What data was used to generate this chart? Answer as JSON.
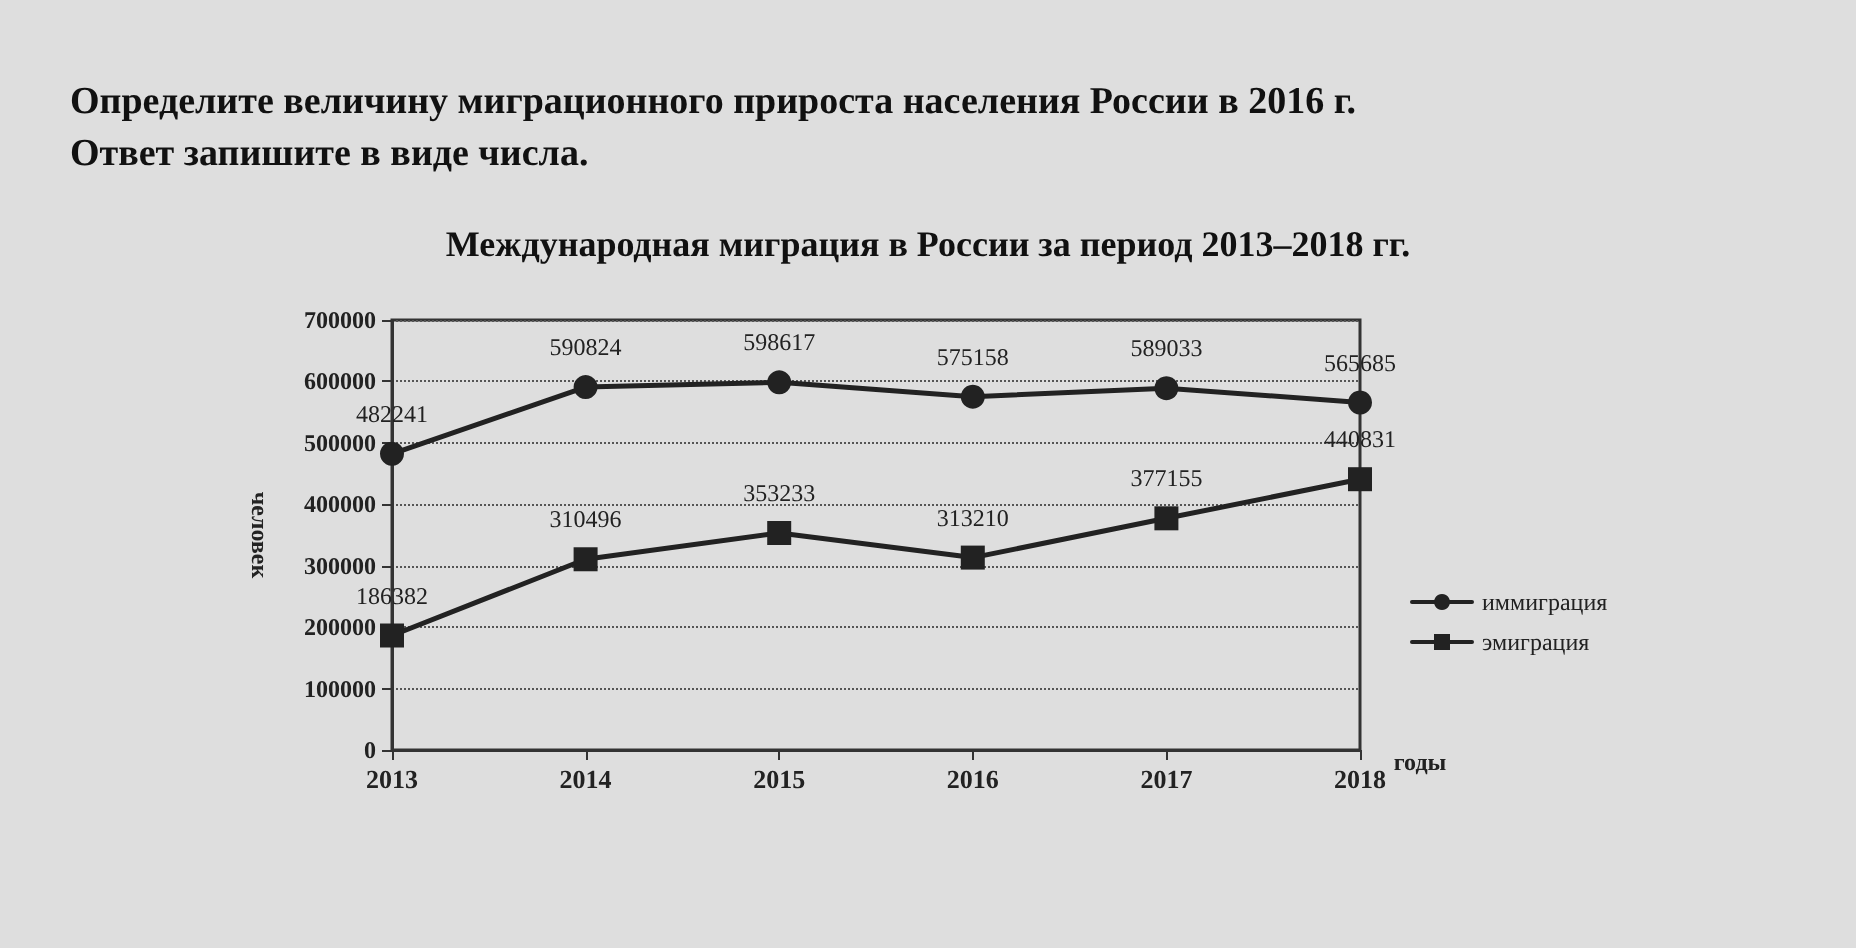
{
  "chart_data": {
    "type": "line",
    "title": "Международная миграция в России за период 2013–2018 гг.",
    "annotations": [
      "Определите величину миграционного прироста населения России в 2016 г.\nОтвет запишите в виде числа."
    ],
    "categories": [
      "2013",
      "2014",
      "2015",
      "2016",
      "2017",
      "2018"
    ],
    "series": [
      {
        "name": "иммиграция",
        "color": "#222222",
        "marker": "circle",
        "values": [
          482241,
          590824,
          598617,
          575158,
          589033,
          565685
        ]
      },
      {
        "name": "эмиграция",
        "color": "#222222",
        "marker": "square",
        "values": [
          186382,
          310496,
          353233,
          313210,
          377155,
          440831
        ]
      }
    ],
    "xlabel": "годы",
    "ylabel": "человек",
    "ylim": [
      0,
      700000
    ],
    "yticks": [
      0,
      100000,
      200000,
      300000,
      400000,
      500000,
      600000,
      700000
    ],
    "grid": "y",
    "legend": "right",
    "data_labels": true,
    "line_style": "solid"
  }
}
